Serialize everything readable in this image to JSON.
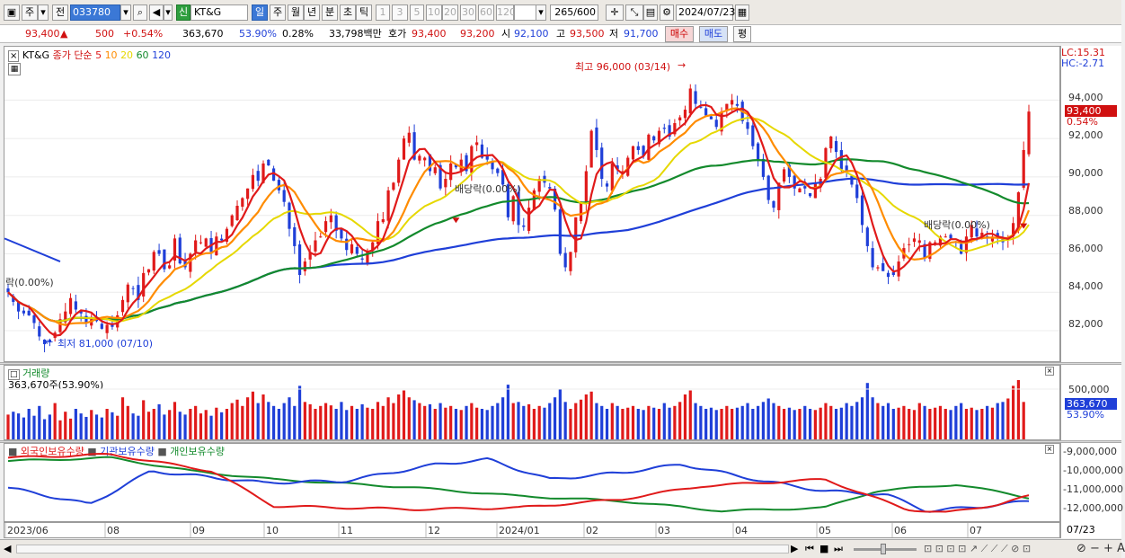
{
  "toolbar": {
    "period_prefix": "주",
    "compare_prefix": "전",
    "code_value": "033780",
    "stock_name": "KT&G",
    "credit_badge": "신",
    "periods": [
      "일",
      "주",
      "월",
      "년",
      "분",
      "초",
      "틱"
    ],
    "active_period": "일",
    "intervals": [
      "1",
      "3",
      "5",
      "10",
      "20",
      "30",
      "60",
      "120"
    ],
    "count_value": "265",
    "count_total": "/600",
    "date_value": "2024/07/23"
  },
  "quote": {
    "price": "93,400",
    "change_mark": "▲",
    "change": "500",
    "change_pct": "+0.54%",
    "volume": "363,670",
    "vol_ratio": "53.90%",
    "turnover_pct": "0.28%",
    "amount": "33,798백만",
    "ask_label": "호가",
    "ask": "93,400",
    "bid": "93,200",
    "open_label": "시",
    "open": "92,100",
    "high_label": "고",
    "high": "93,500",
    "low_label": "저",
    "low": "91,700",
    "buy_button": "매수",
    "sell_button": "매도",
    "avg_button": "평"
  },
  "price_pane": {
    "stock": "KT&G",
    "ma_label": "종가 단순",
    "ma_periods": [
      "5",
      "10",
      "20",
      "60",
      "120"
    ],
    "ma_colors": [
      "#e01a1a",
      "#ff8c00",
      "#e6d800",
      "#138a2c",
      "#1f3fd8"
    ],
    "lc": "LC:15.31",
    "hc": "HC:-2.71",
    "current_price_tag": "93,400",
    "current_pct_tag": "0.54%",
    "y_ticks": [
      "94,000",
      "92,000",
      "90,000",
      "88,000",
      "86,000",
      "84,000",
      "82,000"
    ],
    "high_note": "최고 96,000 (03/14)",
    "low_note": "최저 81,000 (07/10)",
    "div_note_1": "배당락(0.00%)",
    "div_note_2": "배당락(0.00%)",
    "div_note_left": "락(0.00%)"
  },
  "volume_pane": {
    "title": "거래량",
    "value": "363,670주(53.90%)",
    "y_ticks": [
      "500,000"
    ],
    "tag_value": "363,670",
    "tag_pct": "53.90%"
  },
  "holding_pane": {
    "legend": [
      "외국인보유수량",
      "기관보유수량",
      "개인보유수량"
    ],
    "legend_colors": [
      "#e01a1a",
      "#1f3fd8",
      "#138a2c"
    ],
    "y_ticks": [
      "-9,000,000",
      "-10,000,000",
      "-11,000,000",
      "-12,000,000"
    ]
  },
  "x_axis": {
    "labels": [
      "2023/06",
      "08",
      "09",
      "10",
      "11",
      "12",
      "2024/01",
      "02",
      "03",
      "04",
      "05",
      "06",
      "07"
    ],
    "right_label": "07/23"
  },
  "chart_data": {
    "type": "candlestick",
    "y_unit": "KRW",
    "y_range": [
      80600,
      96400
    ],
    "close": [
      84000,
      83500,
      83000,
      82900,
      82800,
      82400,
      81700,
      81300,
      81400,
      81900,
      82600,
      83000,
      83700,
      83100,
      82900,
      82400,
      82600,
      82500,
      82100,
      82300,
      82200,
      82800,
      83600,
      84400,
      84200,
      83600,
      85000,
      85200,
      86100,
      86000,
      85200,
      85400,
      86800,
      85500,
      85300,
      86000,
      86700,
      86600,
      86800,
      86100,
      86900,
      86700,
      87300,
      88000,
      88500,
      88900,
      89400,
      90100,
      89800,
      90700,
      90600,
      89800,
      89300,
      88700,
      87300,
      86400,
      84900,
      85600,
      86100,
      86700,
      86900,
      87700,
      88000,
      87200,
      86800,
      86200,
      86500,
      86000,
      85700,
      86100,
      86600,
      87700,
      87800,
      89300,
      89700,
      90900,
      92000,
      92300,
      90900,
      91100,
      91000,
      90300,
      90500,
      89400,
      89900,
      90700,
      90500,
      90900,
      90300,
      91600,
      91800,
      91000,
      90900,
      90400,
      90200,
      89600,
      87900,
      89000,
      87500,
      87400,
      88400,
      89300,
      89900,
      89700,
      89400,
      88300,
      86000,
      85300,
      86100,
      87900,
      88700,
      90300,
      92400,
      91400,
      89900,
      89500,
      90700,
      90400,
      90300,
      91000,
      91600,
      91400,
      91100,
      92200,
      91900,
      92400,
      92500,
      92100,
      92800,
      93100,
      93500,
      94600,
      93800,
      93600,
      93200,
      93000,
      92600,
      93400,
      93800,
      94000,
      93700,
      92900,
      92500,
      91600,
      90900,
      90000,
      88800,
      88400,
      89700,
      90400,
      90000,
      89400,
      89400,
      89400,
      89000,
      89700,
      89900,
      91500,
      92100,
      91300,
      90400,
      90300,
      89600,
      88900,
      87500,
      86400,
      85300,
      85300,
      85100,
      84800,
      84900,
      85600,
      86300,
      86500,
      86800,
      86700,
      85800,
      86600,
      86600,
      86900,
      86900,
      86800,
      86600,
      86000,
      86900,
      87500,
      86900,
      87100,
      86800,
      86900,
      86800,
      86600,
      86800,
      87600,
      89200,
      91400,
      93400
    ],
    "volume_rel": [
      0.4,
      0.45,
      0.42,
      0.35,
      0.5,
      0.38,
      0.55,
      0.32,
      0.4,
      0.6,
      0.3,
      0.45,
      0.33,
      0.5,
      0.42,
      0.36,
      0.48,
      0.4,
      0.35,
      0.5,
      0.44,
      0.38,
      0.7,
      0.55,
      0.42,
      0.38,
      0.65,
      0.45,
      0.5,
      0.58,
      0.4,
      0.48,
      0.62,
      0.45,
      0.4,
      0.5,
      0.55,
      0.42,
      0.48,
      0.38,
      0.52,
      0.44,
      0.5,
      0.6,
      0.66,
      0.55,
      0.7,
      0.8,
      0.6,
      0.75,
      0.62,
      0.55,
      0.5,
      0.6,
      0.7,
      0.55,
      0.9,
      0.62,
      0.58,
      0.5,
      0.55,
      0.6,
      0.56,
      0.5,
      0.62,
      0.48,
      0.55,
      0.5,
      0.58,
      0.52,
      0.5,
      0.62,
      0.55,
      0.7,
      0.6,
      0.75,
      0.82,
      0.7,
      0.65,
      0.6,
      0.55,
      0.58,
      0.5,
      0.6,
      0.52,
      0.55,
      0.5,
      0.48,
      0.55,
      0.6,
      0.52,
      0.5,
      0.48,
      0.55,
      0.6,
      0.7,
      0.92,
      0.6,
      0.62,
      0.55,
      0.58,
      0.5,
      0.55,
      0.52,
      0.6,
      0.7,
      0.85,
      0.62,
      0.5,
      0.6,
      0.66,
      0.75,
      0.8,
      0.6,
      0.55,
      0.5,
      0.6,
      0.55,
      0.5,
      0.52,
      0.55,
      0.5,
      0.48,
      0.55,
      0.52,
      0.5,
      0.6,
      0.52,
      0.55,
      0.62,
      0.75,
      0.82,
      0.6,
      0.55,
      0.5,
      0.52,
      0.48,
      0.5,
      0.55,
      0.5,
      0.52,
      0.55,
      0.6,
      0.5,
      0.55,
      0.62,
      0.68,
      0.6,
      0.55,
      0.5,
      0.52,
      0.48,
      0.5,
      0.55,
      0.5,
      0.48,
      0.52,
      0.6,
      0.55,
      0.5,
      0.52,
      0.6,
      0.55,
      0.62,
      0.7,
      0.95,
      0.7,
      0.6,
      0.55,
      0.6,
      0.5,
      0.52,
      0.55,
      0.5,
      0.48,
      0.6,
      0.55,
      0.5,
      0.52,
      0.55,
      0.5,
      0.48,
      0.55,
      0.6,
      0.5,
      0.52,
      0.48,
      0.5,
      0.55,
      0.52,
      0.6,
      0.62,
      0.68,
      0.9,
      1.0,
      0.62
    ]
  }
}
